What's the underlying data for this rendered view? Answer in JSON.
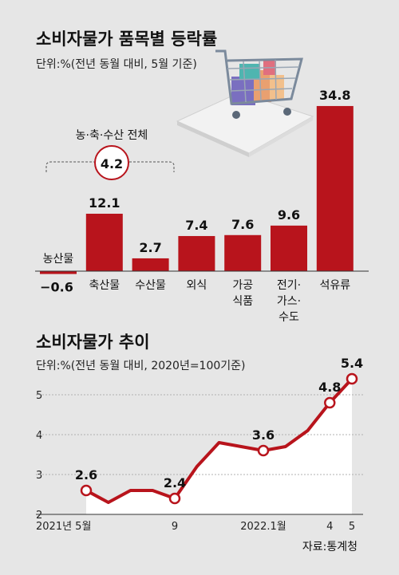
{
  "colors": {
    "bar": "#b8141c",
    "line": "#b8141c",
    "panel": "#e6e6e6",
    "area": "#ffffff"
  },
  "chart_data": [
    {
      "type": "bar",
      "title": "소비자물가 품목별 등락률",
      "subtitle": "단위:%(전년 동월 대비, 5월 기준)",
      "categories": [
        {
          "label": [
            "농산물"
          ],
          "value": -0.6,
          "value_label": "−0.6"
        },
        {
          "label": [
            "축산물"
          ],
          "value": 12.1,
          "value_label": "12.1"
        },
        {
          "label": [
            "수산물"
          ],
          "value": 2.7,
          "value_label": "2.7"
        },
        {
          "label": [
            "외식"
          ],
          "value": 7.4,
          "value_label": "7.4"
        },
        {
          "label": [
            "가공",
            "식품"
          ],
          "value": 7.6,
          "value_label": "7.6"
        },
        {
          "label": [
            "전기·",
            "가스·",
            "수도"
          ],
          "value": 9.6,
          "value_label": "9.6"
        },
        {
          "label": [
            "석유류"
          ],
          "value": 34.8,
          "value_label": "34.8"
        }
      ],
      "group_annotation": {
        "label": "농·축·수산 전체",
        "value": "4.2"
      }
    },
    {
      "type": "line",
      "title": "소비자물가 추이",
      "subtitle": "단위:%(전년 동월 대비, 2020년=100기준)",
      "x": [
        "2021-05",
        "2021-06",
        "2021-07",
        "2021-08",
        "2021-09",
        "2021-10",
        "2021-11",
        "2021-12",
        "2022-01",
        "2022-02",
        "2022-03",
        "2022-04",
        "2022-05"
      ],
      "values": [
        2.6,
        2.3,
        2.6,
        2.6,
        2.4,
        3.2,
        3.8,
        3.7,
        3.6,
        3.7,
        4.1,
        4.8,
        5.4
      ],
      "highlighted": [
        {
          "x": "2021-05",
          "label": "2.6"
        },
        {
          "x": "2021-09",
          "label": "2.4"
        },
        {
          "x": "2022-01",
          "label": "3.6"
        },
        {
          "x": "2022-04",
          "label": "4.8"
        },
        {
          "x": "2022-05",
          "label": "5.4"
        }
      ],
      "ylim": [
        2,
        5.5
      ],
      "y_ticks": [
        "2",
        "3",
        "4",
        "5"
      ],
      "x_ticks": [
        {
          "x": "2021-05",
          "label": "2021년 5월"
        },
        {
          "x": "2021-09",
          "label": "9"
        },
        {
          "x": "2022-01",
          "label": "2022.1월"
        },
        {
          "x": "2022-04",
          "label": "4"
        },
        {
          "x": "2022-05",
          "label": "5"
        }
      ]
    }
  ],
  "source": "자료:통계청"
}
